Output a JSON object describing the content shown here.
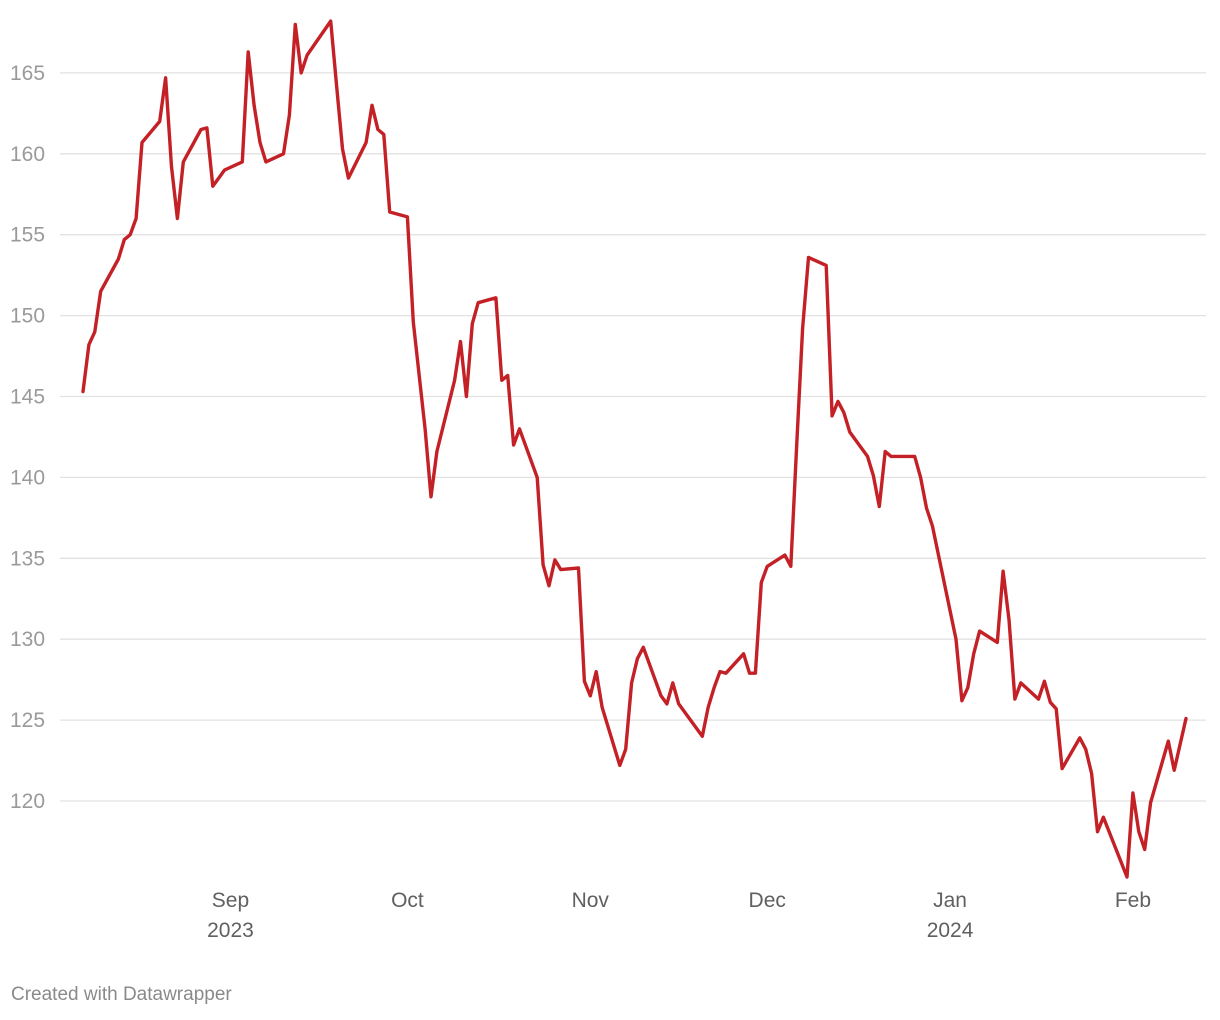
{
  "chart_data": {
    "type": "line",
    "title": "",
    "xlabel": "",
    "ylabel": "",
    "ylim": [
      114,
      168
    ],
    "yticks": [
      120,
      125,
      130,
      135,
      140,
      145,
      150,
      155,
      160,
      165
    ],
    "xlim": [
      "2023-08-07",
      "2024-02-08"
    ],
    "xticks": [
      {
        "date": "2023-09-01",
        "label": "Sep",
        "sublabel": "2023"
      },
      {
        "date": "2023-10-01",
        "label": "Oct",
        "sublabel": ""
      },
      {
        "date": "2023-11-01",
        "label": "Nov",
        "sublabel": ""
      },
      {
        "date": "2023-12-01",
        "label": "Dec",
        "sublabel": ""
      },
      {
        "date": "2024-01-01",
        "label": "Jan",
        "sublabel": "2024"
      },
      {
        "date": "2024-02-01",
        "label": "Feb",
        "sublabel": ""
      }
    ],
    "grid": true,
    "color": "#c42127",
    "series": [
      {
        "values": [
          [
            "2023-08-07",
            145.3
          ],
          [
            "2023-08-08",
            148.2
          ],
          [
            "2023-08-09",
            149.0
          ],
          [
            "2023-08-10",
            151.5
          ],
          [
            "2023-08-13",
            153.5
          ],
          [
            "2023-08-14",
            154.7
          ],
          [
            "2023-08-15",
            155.0
          ],
          [
            "2023-08-16",
            156.0
          ],
          [
            "2023-08-17",
            160.7
          ],
          [
            "2023-08-20",
            162.0
          ],
          [
            "2023-08-21",
            164.7
          ],
          [
            "2023-08-22",
            159.2
          ],
          [
            "2023-08-23",
            156.0
          ],
          [
            "2023-08-24",
            159.5
          ],
          [
            "2023-08-27",
            161.5
          ],
          [
            "2023-08-28",
            161.6
          ],
          [
            "2023-08-29",
            158.0
          ],
          [
            "2023-08-31",
            159.0
          ],
          [
            "2023-09-03",
            159.5
          ],
          [
            "2023-09-04",
            166.3
          ],
          [
            "2023-09-05",
            163.0
          ],
          [
            "2023-09-06",
            160.7
          ],
          [
            "2023-09-07",
            159.5
          ],
          [
            "2023-09-10",
            160.0
          ],
          [
            "2023-09-11",
            162.4
          ],
          [
            "2023-09-12",
            168.0
          ],
          [
            "2023-09-13",
            165.0
          ],
          [
            "2023-09-14",
            166.1
          ],
          [
            "2023-09-18",
            168.2
          ],
          [
            "2023-09-19",
            164.2
          ],
          [
            "2023-09-20",
            160.3
          ],
          [
            "2023-09-21",
            158.5
          ],
          [
            "2023-09-24",
            160.7
          ],
          [
            "2023-09-25",
            163.0
          ],
          [
            "2023-09-26",
            161.5
          ],
          [
            "2023-09-27",
            161.2
          ],
          [
            "2023-09-28",
            156.4
          ],
          [
            "2023-10-01",
            156.1
          ],
          [
            "2023-10-02",
            149.6
          ],
          [
            "2023-10-04",
            143.0
          ],
          [
            "2023-10-05",
            138.8
          ],
          [
            "2023-10-06",
            141.6
          ],
          [
            "2023-10-09",
            146.0
          ],
          [
            "2023-10-10",
            148.4
          ],
          [
            "2023-10-11",
            145.0
          ],
          [
            "2023-10-12",
            149.5
          ],
          [
            "2023-10-13",
            150.8
          ],
          [
            "2023-10-16",
            151.1
          ],
          [
            "2023-10-17",
            146.0
          ],
          [
            "2023-10-18",
            146.3
          ],
          [
            "2023-10-19",
            142.0
          ],
          [
            "2023-10-20",
            143.0
          ],
          [
            "2023-10-23",
            140.0
          ],
          [
            "2023-10-24",
            134.6
          ],
          [
            "2023-10-25",
            133.3
          ],
          [
            "2023-10-26",
            134.9
          ],
          [
            "2023-10-27",
            134.3
          ],
          [
            "2023-10-30",
            134.4
          ],
          [
            "2023-10-31",
            127.4
          ],
          [
            "2023-11-01",
            126.5
          ],
          [
            "2023-11-02",
            128.0
          ],
          [
            "2023-11-03",
            125.8
          ],
          [
            "2023-11-06",
            122.2
          ],
          [
            "2023-11-07",
            123.2
          ],
          [
            "2023-11-08",
            127.3
          ],
          [
            "2023-11-09",
            128.8
          ],
          [
            "2023-11-10",
            129.5
          ],
          [
            "2023-11-13",
            126.5
          ],
          [
            "2023-11-14",
            126.0
          ],
          [
            "2023-11-15",
            127.3
          ],
          [
            "2023-11-16",
            126.0
          ],
          [
            "2023-11-20",
            124.0
          ],
          [
            "2023-11-21",
            125.8
          ],
          [
            "2023-11-22",
            127.0
          ],
          [
            "2023-11-23",
            128.0
          ],
          [
            "2023-11-24",
            127.9
          ],
          [
            "2023-11-27",
            129.1
          ],
          [
            "2023-11-28",
            127.9
          ],
          [
            "2023-11-29",
            127.9
          ],
          [
            "2023-11-30",
            133.5
          ],
          [
            "2023-12-01",
            134.5
          ],
          [
            "2023-12-04",
            135.2
          ],
          [
            "2023-12-05",
            134.5
          ],
          [
            "2023-12-06",
            142.0
          ],
          [
            "2023-12-07",
            149.2
          ],
          [
            "2023-12-08",
            153.6
          ],
          [
            "2023-12-11",
            153.1
          ],
          [
            "2023-12-12",
            143.8
          ],
          [
            "2023-12-13",
            144.7
          ],
          [
            "2023-12-14",
            144.0
          ],
          [
            "2023-12-15",
            142.8
          ],
          [
            "2023-12-18",
            141.3
          ],
          [
            "2023-12-19",
            140.1
          ],
          [
            "2023-12-20",
            138.2
          ],
          [
            "2023-12-21",
            141.6
          ],
          [
            "2023-12-22",
            141.3
          ],
          [
            "2023-12-26",
            141.3
          ],
          [
            "2023-12-27",
            140.0
          ],
          [
            "2023-12-28",
            138.1
          ],
          [
            "2023-12-29",
            137.0
          ],
          [
            "2024-01-02",
            130.0
          ],
          [
            "2024-01-03",
            126.2
          ],
          [
            "2024-01-04",
            127.0
          ],
          [
            "2024-01-05",
            129.1
          ],
          [
            "2024-01-06",
            130.5
          ],
          [
            "2024-01-09",
            129.8
          ],
          [
            "2024-01-10",
            134.2
          ],
          [
            "2024-01-11",
            131.2
          ],
          [
            "2024-01-12",
            126.3
          ],
          [
            "2024-01-13",
            127.3
          ],
          [
            "2024-01-16",
            126.3
          ],
          [
            "2024-01-17",
            127.4
          ],
          [
            "2024-01-18",
            126.1
          ],
          [
            "2024-01-19",
            125.7
          ],
          [
            "2024-01-20",
            122.0
          ],
          [
            "2024-01-23",
            123.9
          ],
          [
            "2024-01-24",
            123.2
          ],
          [
            "2024-01-25",
            121.7
          ],
          [
            "2024-01-26",
            118.1
          ],
          [
            "2024-01-27",
            119.0
          ],
          [
            "2024-01-31",
            115.3
          ],
          [
            "2024-02-01",
            120.5
          ],
          [
            "2024-02-02",
            118.1
          ],
          [
            "2024-02-03",
            117.0
          ],
          [
            "2024-02-04",
            119.9
          ],
          [
            "2024-02-07",
            123.7
          ],
          [
            "2024-02-08",
            121.9
          ],
          [
            "2024-02-10",
            125.1
          ]
        ]
      }
    ]
  },
  "footer": {
    "credit": "Created with Datawrapper"
  }
}
